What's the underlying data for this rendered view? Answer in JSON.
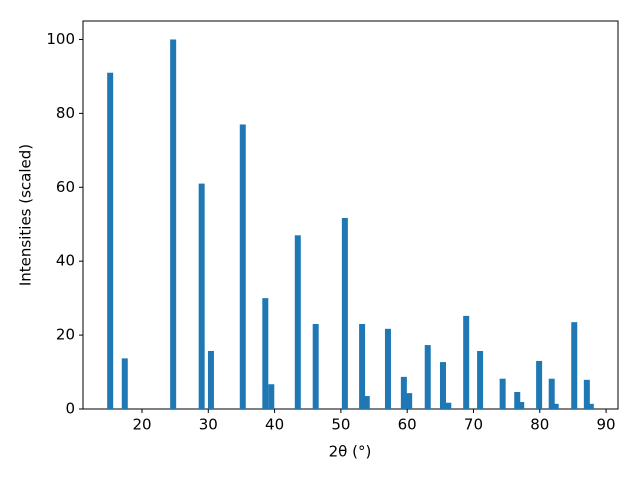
{
  "chart_data": {
    "type": "bar",
    "xlabel": "2θ (°)",
    "ylabel": "Intensities (scaled)",
    "x": [
      15.2,
      17.4,
      24.7,
      29.0,
      30.4,
      35.2,
      38.6,
      39.5,
      43.5,
      46.2,
      50.6,
      53.2,
      53.9,
      57.1,
      59.5,
      60.3,
      63.1,
      65.4,
      66.2,
      68.9,
      71.0,
      74.4,
      76.6,
      77.2,
      79.9,
      81.8,
      82.4,
      85.2,
      87.1,
      87.7
    ],
    "values": [
      91,
      13.7,
      100,
      61,
      15.7,
      77,
      30,
      6.7,
      47,
      23,
      51.7,
      23,
      3.5,
      21.7,
      8.7,
      4.3,
      17.3,
      12.7,
      1.7,
      25.2,
      15.7,
      8.2,
      4.6,
      1.9,
      13,
      8.2,
      1.4,
      23.5,
      7.9,
      1.4
    ],
    "color": "#1f77b4",
    "xlim": [
      11.1,
      91.8
    ],
    "xticks": [
      20,
      30,
      40,
      50,
      60,
      70,
      80,
      90
    ],
    "ylim": [
      0,
      105
    ],
    "yticks": [
      0,
      20,
      40,
      60,
      80,
      100
    ],
    "grid": false
  }
}
